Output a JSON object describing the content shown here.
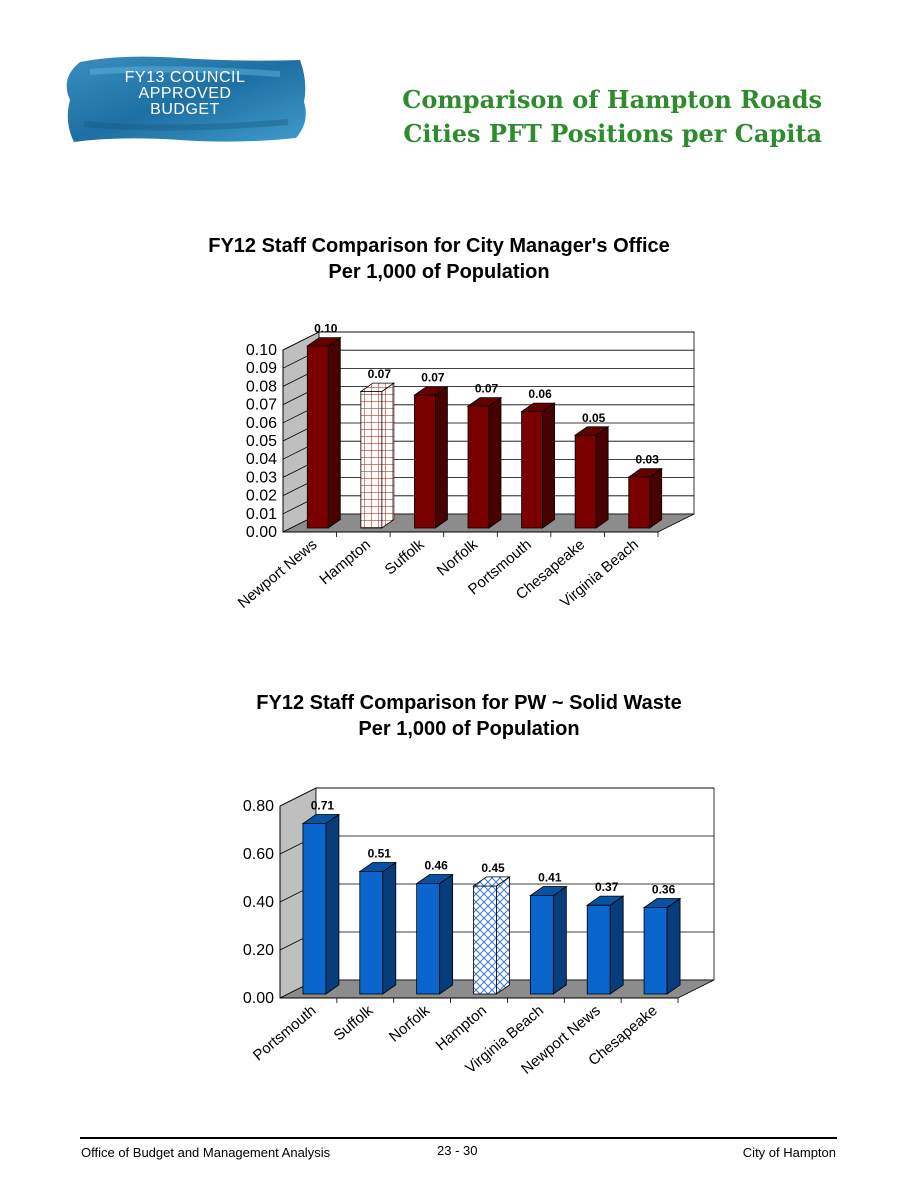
{
  "header": {
    "logo_lines": [
      "FY13 COUNCIL",
      "APPROVED",
      "BUDGET"
    ],
    "title_lines": [
      "Comparison of Hampton Roads",
      "Cities PFT Positions per Capita"
    ],
    "title_color": "#2e8b2e"
  },
  "chart_data": [
    {
      "type": "bar",
      "title_lines": [
        "FY12 Staff Comparison for City Manager's Office",
        "Per 1,000 of Population"
      ],
      "categories": [
        "Newport News",
        "Hampton",
        "Suffolk",
        "Norfolk",
        "Portsmouth",
        "Chesapeake",
        "Virginia Beach"
      ],
      "values": [
        0.1,
        0.075,
        0.073,
        0.067,
        0.064,
        0.051,
        0.028
      ],
      "data_labels": [
        "0.10",
        "0.07",
        "0.07",
        "0.07",
        "0.06",
        "0.05",
        "0.03"
      ],
      "highlight": "Hampton",
      "ylim": [
        0,
        0.1
      ],
      "yticks": [
        "0.00",
        "0.01",
        "0.02",
        "0.03",
        "0.04",
        "0.05",
        "0.06",
        "0.07",
        "0.08",
        "0.09",
        "0.10"
      ],
      "bar_color": "#7a0000",
      "grid": true,
      "xlabel": "",
      "ylabel": ""
    },
    {
      "type": "bar",
      "title_lines": [
        "FY12 Staff Comparison for PW ~ Solid Waste",
        "Per 1,000 of Population"
      ],
      "categories": [
        "Portsmouth",
        "Suffolk",
        "Norfolk",
        "Hampton",
        "Virginia Beach",
        "Newport News",
        "Chesapeake"
      ],
      "values": [
        0.71,
        0.51,
        0.46,
        0.45,
        0.41,
        0.37,
        0.36
      ],
      "data_labels": [
        "0.71",
        "0.51",
        "0.46",
        "0.45",
        "0.41",
        "0.37",
        "0.36"
      ],
      "highlight": "Hampton",
      "ylim": [
        0,
        0.8
      ],
      "yticks": [
        "0.00",
        "0.20",
        "0.40",
        "0.60",
        "0.80"
      ],
      "bar_color": "#0a66cc",
      "grid": true,
      "xlabel": "",
      "ylabel": ""
    }
  ],
  "footer": {
    "left": "Office of Budget and Management Analysis",
    "center": "23 - 30",
    "right": "City of Hampton"
  }
}
